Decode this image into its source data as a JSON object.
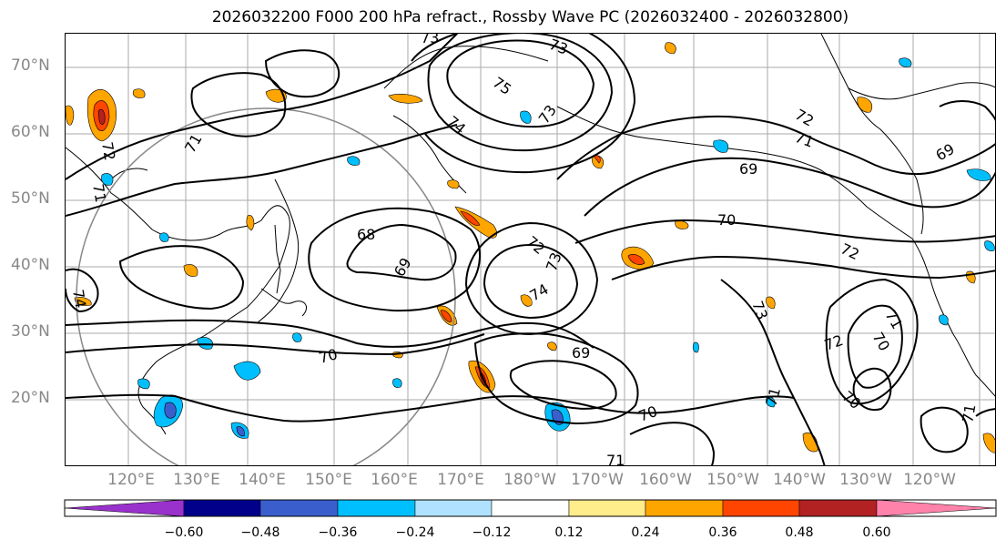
{
  "title": "2026032200 F000 200 hPa refract., Rossby Wave PC (2026032400 - 2026032800)",
  "lat_labels": [
    "70°N",
    "60°N",
    "50°N",
    "40°N",
    "30°N",
    "20°N"
  ],
  "lon_labels": [
    "120°E",
    "130°E",
    "140°E",
    "150°E",
    "160°E",
    "170°E",
    "180°W",
    "170°W",
    "160°W",
    "150°W",
    "140°W",
    "130°W",
    "120°W"
  ],
  "contour_labels": [
    "73",
    "73",
    "75",
    "74",
    "73",
    "71",
    "72",
    "71",
    "69",
    "69",
    "70",
    "72",
    "68",
    "69",
    "72",
    "73",
    "74",
    "73",
    "70",
    "69",
    "72",
    "70",
    "71",
    "70",
    "70",
    "71",
    "71",
    "71",
    "72",
    "74",
    "71"
  ],
  "colorbar": {
    "ticks": [
      "−0.60",
      "−0.48",
      "−0.36",
      "−0.24",
      "−0.12",
      "0.12",
      "0.24",
      "0.36",
      "0.48",
      "0.60"
    ],
    "colors": [
      "#9932cc",
      "#00008b",
      "#3a5fcd",
      "#00bfff",
      "#b0e2ff",
      "#ffffff",
      "#ffec8b",
      "#ffa500",
      "#ff4500",
      "#b22222",
      "#ff82ab"
    ]
  }
}
